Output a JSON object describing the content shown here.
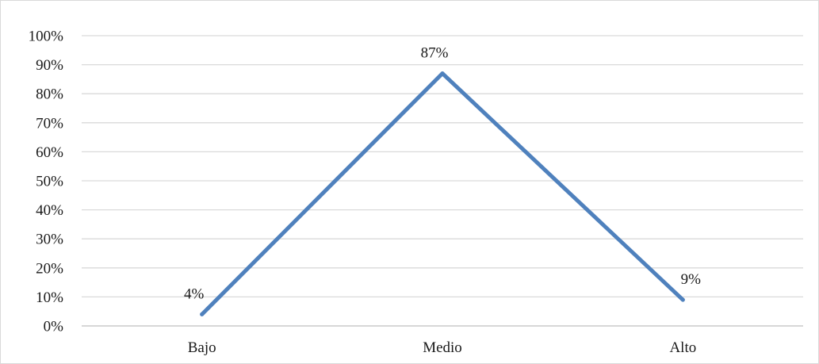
{
  "chart_data": {
    "type": "line",
    "categories": [
      "Bajo",
      "Medio",
      "Alto"
    ],
    "series": [
      {
        "values": [
          4,
          87,
          9
        ]
      }
    ],
    "data_labels": [
      "4%",
      "87%",
      "9%"
    ],
    "y_ticks": [
      "0%",
      "10%",
      "20%",
      "30%",
      "40%",
      "50%",
      "60%",
      "70%",
      "80%",
      "90%",
      "100%"
    ],
    "ylim": [
      0,
      100
    ],
    "grid": true,
    "legend": "none",
    "title": "",
    "xlabel": "",
    "ylabel": "",
    "colors": {
      "series": "#4f81bd",
      "grid": "#d9d9d9",
      "axis": "#bfbfbf"
    }
  }
}
